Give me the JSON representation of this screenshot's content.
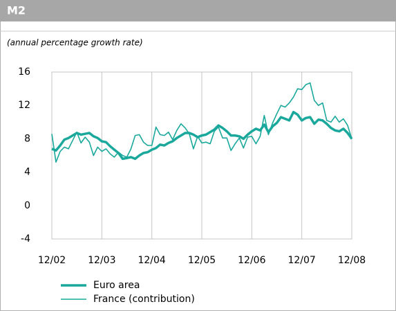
{
  "chart_data": {
    "type": "line",
    "title": "M2",
    "subtitle": "(annual percentage growth rate)",
    "x": [
      "12/02",
      "01/03",
      "02/03",
      "03/03",
      "04/03",
      "05/03",
      "06/03",
      "07/03",
      "08/03",
      "09/03",
      "10/03",
      "11/03",
      "12/03",
      "01/04",
      "02/04",
      "03/04",
      "04/04",
      "05/04",
      "06/04",
      "07/04",
      "08/04",
      "09/04",
      "10/04",
      "11/04",
      "12/04",
      "01/05",
      "02/05",
      "03/05",
      "04/05",
      "05/05",
      "06/05",
      "07/05",
      "08/05",
      "09/05",
      "10/05",
      "11/05",
      "12/05",
      "01/06",
      "02/06",
      "03/06",
      "04/06",
      "05/06",
      "06/06",
      "07/06",
      "08/06",
      "09/06",
      "10/06",
      "11/06",
      "12/06",
      "01/07",
      "02/07",
      "03/07",
      "04/07",
      "05/07",
      "06/07",
      "07/07",
      "08/07",
      "09/07",
      "10/07",
      "11/07",
      "12/07",
      "01/08",
      "02/08",
      "03/08",
      "04/08",
      "05/08",
      "06/08",
      "07/08",
      "08/08",
      "09/08",
      "10/08",
      "11/08",
      "12/08"
    ],
    "xlim": [
      "12/02",
      "12/08"
    ],
    "xticks": [
      "12/02",
      "12/03",
      "12/04",
      "12/05",
      "12/06",
      "12/07",
      "12/08"
    ],
    "ylim": [
      -4,
      16
    ],
    "yticks": [
      16,
      12,
      8,
      4,
      0,
      -4
    ],
    "grid": "x",
    "series": [
      {
        "name": "Euro area",
        "color": "#1aa89c",
        "width": 3.5,
        "values": [
          6.8,
          6.6,
          7.2,
          7.9,
          8.1,
          8.4,
          8.7,
          8.5,
          8.6,
          8.7,
          8.3,
          8.1,
          7.7,
          7.6,
          7.1,
          6.7,
          6.3,
          5.6,
          5.7,
          5.8,
          5.6,
          6.0,
          6.3,
          6.4,
          6.7,
          6.9,
          7.3,
          7.2,
          7.5,
          7.7,
          8.1,
          8.4,
          8.7,
          8.7,
          8.5,
          8.2,
          8.4,
          8.5,
          8.8,
          9.1,
          9.6,
          9.3,
          8.9,
          8.4,
          8.4,
          8.3,
          8.0,
          8.5,
          8.9,
          9.2,
          9.0,
          9.7,
          8.8,
          9.5,
          9.9,
          10.6,
          10.4,
          10.2,
          11.2,
          10.9,
          10.2,
          10.5,
          10.6,
          9.8,
          10.3,
          10.2,
          9.8,
          9.3,
          9.0,
          8.9,
          9.2,
          8.7,
          8.0
        ]
      },
      {
        "name": "France (contribution)",
        "color": "#1aa89c",
        "width": 1.6,
        "values": [
          8.6,
          5.2,
          6.5,
          7.0,
          6.8,
          7.8,
          8.8,
          7.5,
          8.2,
          7.6,
          6.0,
          7.0,
          6.5,
          6.8,
          6.2,
          5.8,
          6.4,
          6.0,
          5.8,
          6.8,
          8.4,
          8.5,
          7.6,
          7.2,
          7.2,
          9.4,
          8.5,
          8.4,
          8.8,
          7.9,
          9.0,
          9.8,
          9.3,
          8.6,
          6.8,
          8.3,
          7.5,
          7.6,
          7.4,
          8.9,
          9.4,
          8.1,
          8.1,
          6.6,
          7.4,
          8.1,
          6.9,
          8.2,
          8.3,
          7.4,
          8.3,
          10.8,
          8.5,
          9.9,
          11.0,
          12.0,
          11.8,
          12.3,
          13.0,
          14.0,
          13.9,
          14.5,
          14.7,
          12.6,
          12.0,
          12.3,
          10.2,
          10.0,
          10.7,
          10.0,
          10.4,
          9.6,
          8.0
        ]
      }
    ]
  }
}
